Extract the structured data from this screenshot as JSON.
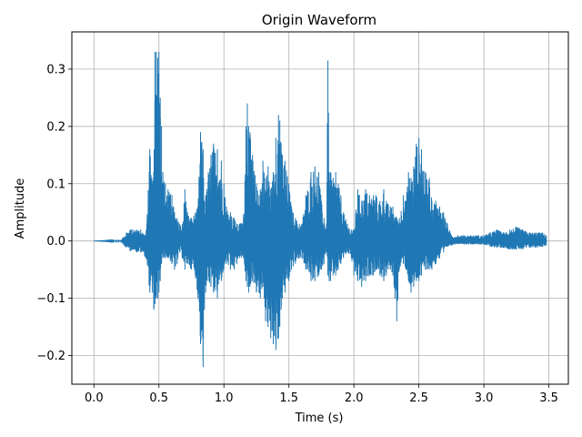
{
  "chart_data": {
    "type": "line",
    "title": "Origin Waveform",
    "xlabel": "Time (s)",
    "ylabel": "Amplitude",
    "xlim": [
      -0.17,
      3.65
    ],
    "ylim": [
      -0.25,
      0.365
    ],
    "grid": true,
    "line_color": "#1f77b4",
    "xticks": [
      0.0,
      0.5,
      1.0,
      1.5,
      2.0,
      2.5,
      3.0,
      3.5
    ],
    "xtick_labels": [
      "0.0",
      "0.5",
      "1.0",
      "1.5",
      "2.0",
      "2.5",
      "3.0",
      "3.5"
    ],
    "yticks": [
      -0.2,
      -0.1,
      0.0,
      0.1,
      0.2,
      0.3
    ],
    "ytick_labels": [
      "−0.2",
      "−0.1",
      "0.0",
      "0.1",
      "0.2",
      "0.3"
    ],
    "series": [
      {
        "x": [
          0.0,
          0.2,
          0.22,
          0.25,
          0.28,
          0.3,
          0.33,
          0.36,
          0.4,
          0.43,
          0.45,
          0.46,
          0.47,
          0.48,
          0.49,
          0.5,
          0.51,
          0.52,
          0.53,
          0.55,
          0.57,
          0.6,
          0.62,
          0.64,
          0.66,
          0.68,
          0.7,
          0.72,
          0.75,
          0.78,
          0.8,
          0.82,
          0.84,
          0.85,
          0.86,
          0.88,
          0.9,
          0.92,
          0.95,
          0.98,
          1.0,
          1.02,
          1.05,
          1.08,
          1.1,
          1.12,
          1.15,
          1.17,
          1.18,
          1.19,
          1.2,
          1.22,
          1.25,
          1.27,
          1.28,
          1.3,
          1.32,
          1.34,
          1.36,
          1.38,
          1.4,
          1.42,
          1.43,
          1.44,
          1.45,
          1.47,
          1.5,
          1.52,
          1.55,
          1.58,
          1.6,
          1.63,
          1.67,
          1.7,
          1.73,
          1.75,
          1.77,
          1.79,
          1.8,
          1.81,
          1.82,
          1.84,
          1.86,
          1.88,
          1.9,
          1.92,
          1.95,
          1.98,
          2.0,
          2.03,
          2.06,
          2.09,
          2.12,
          2.15,
          2.17,
          2.2,
          2.23,
          2.25,
          2.28,
          2.3,
          2.33,
          2.35,
          2.38,
          2.4,
          2.42,
          2.44,
          2.46,
          2.48,
          2.5,
          2.52,
          2.55,
          2.58,
          2.6,
          2.63,
          2.66,
          2.69,
          2.72,
          2.75,
          2.8,
          2.85,
          2.9,
          2.95,
          3.0,
          3.05,
          3.1,
          3.15,
          3.2,
          3.25,
          3.3,
          3.35,
          3.4,
          3.45,
          3.48
        ],
        "ymax": [
          0.0,
          0.001,
          0.005,
          0.015,
          0.02,
          0.02,
          0.02,
          0.02,
          0.01,
          0.16,
          0.1,
          0.12,
          0.33,
          0.33,
          0.32,
          0.33,
          0.25,
          0.2,
          0.12,
          0.1,
          0.09,
          0.08,
          0.05,
          0.04,
          0.03,
          0.03,
          0.09,
          0.05,
          0.04,
          0.05,
          0.06,
          0.19,
          0.16,
          0.07,
          0.08,
          0.12,
          0.15,
          0.17,
          0.16,
          0.14,
          0.1,
          0.06,
          0.05,
          0.04,
          0.03,
          0.03,
          0.04,
          0.2,
          0.24,
          0.2,
          0.19,
          0.15,
          0.1,
          0.08,
          0.09,
          0.14,
          0.11,
          0.13,
          0.09,
          0.12,
          0.18,
          0.22,
          0.21,
          0.17,
          0.15,
          0.14,
          0.1,
          0.06,
          0.04,
          0.03,
          0.03,
          0.08,
          0.12,
          0.13,
          0.12,
          0.07,
          0.04,
          0.03,
          0.315,
          0.12,
          0.12,
          0.11,
          0.12,
          0.1,
          0.08,
          0.05,
          0.03,
          0.02,
          0.02,
          0.09,
          0.07,
          0.09,
          0.08,
          0.08,
          0.08,
          0.07,
          0.09,
          0.07,
          0.06,
          0.06,
          0.04,
          0.04,
          0.08,
          0.07,
          0.12,
          0.11,
          0.13,
          0.17,
          0.18,
          0.16,
          0.12,
          0.11,
          0.07,
          0.07,
          0.06,
          0.05,
          0.03,
          0.01,
          0.01,
          0.01,
          0.01,
          0.01,
          0.01,
          0.015,
          0.02,
          0.015,
          0.02,
          0.025,
          0.02,
          0.015,
          0.015,
          0.015,
          0.01
        ],
        "ymin": [
          0.0,
          -0.001,
          -0.005,
          -0.012,
          -0.018,
          -0.015,
          -0.02,
          -0.02,
          -0.03,
          -0.09,
          -0.09,
          -0.12,
          -0.11,
          -0.1,
          -0.1,
          -0.09,
          -0.07,
          -0.04,
          -0.03,
          -0.03,
          -0.03,
          -0.04,
          -0.05,
          -0.04,
          -0.02,
          -0.03,
          -0.05,
          -0.04,
          -0.05,
          -0.06,
          -0.1,
          -0.18,
          -0.22,
          -0.12,
          -0.09,
          -0.07,
          -0.08,
          -0.09,
          -0.1,
          -0.07,
          -0.05,
          -0.04,
          -0.05,
          -0.05,
          -0.04,
          -0.03,
          -0.03,
          -0.07,
          -0.08,
          -0.09,
          -0.08,
          -0.07,
          -0.09,
          -0.09,
          -0.1,
          -0.08,
          -0.14,
          -0.15,
          -0.17,
          -0.18,
          -0.19,
          -0.17,
          -0.15,
          -0.12,
          -0.1,
          -0.09,
          -0.07,
          -0.05,
          -0.04,
          -0.03,
          -0.03,
          -0.05,
          -0.07,
          -0.07,
          -0.06,
          -0.05,
          -0.04,
          -0.02,
          -0.06,
          -0.07,
          -0.07,
          -0.06,
          -0.06,
          -0.05,
          -0.04,
          -0.03,
          -0.02,
          -0.03,
          -0.06,
          -0.07,
          -0.08,
          -0.07,
          -0.06,
          -0.06,
          -0.05,
          -0.06,
          -0.07,
          -0.06,
          -0.05,
          -0.06,
          -0.14,
          -0.05,
          -0.04,
          -0.05,
          -0.07,
          -0.09,
          -0.08,
          -0.07,
          -0.07,
          -0.06,
          -0.05,
          -0.05,
          -0.05,
          -0.04,
          -0.03,
          -0.02,
          -0.01,
          -0.008,
          -0.005,
          -0.006,
          -0.006,
          -0.006,
          -0.007,
          -0.01,
          -0.012,
          -0.012,
          -0.015,
          -0.015,
          -0.015,
          -0.012,
          -0.012,
          -0.01,
          -0.008
        ]
      }
    ]
  }
}
